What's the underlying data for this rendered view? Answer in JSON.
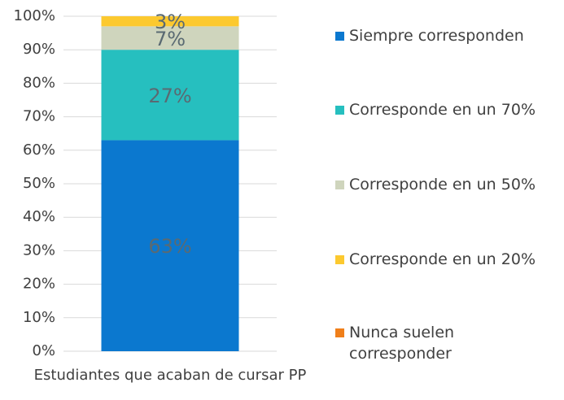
{
  "chart_data": {
    "type": "stacked_bar",
    "categories": [
      "Estudiantes que acaban de cursar PP"
    ],
    "series": [
      {
        "name": "Siempre corresponden",
        "color": "#0b78cf",
        "values": [
          63
        ],
        "value_labels": [
          "63%"
        ]
      },
      {
        "name": "Corresponde en un 70%",
        "color": "#26bfbf",
        "values": [
          27
        ],
        "value_labels": [
          "27%"
        ]
      },
      {
        "name": "Corresponde en un 50%",
        "color": "#cfd5bd",
        "values": [
          7
        ],
        "value_labels": [
          "7%"
        ]
      },
      {
        "name": "Corresponde en un 20%",
        "color": "#fcc92f",
        "values": [
          3
        ],
        "value_labels": [
          "3%"
        ]
      },
      {
        "name": "Nunca suelen corresponder",
        "color": "#f07f1a",
        "values": [
          0
        ]
      }
    ],
    "ylim": [
      0,
      100
    ],
    "yticks": [
      {
        "value": 0,
        "label": "0%"
      },
      {
        "value": 10,
        "label": "10%"
      },
      {
        "value": 20,
        "label": "20%"
      },
      {
        "value": 30,
        "label": "30%"
      },
      {
        "value": 40,
        "label": "40%"
      },
      {
        "value": 50,
        "label": "50%"
      },
      {
        "value": 60,
        "label": "60%"
      },
      {
        "value": 70,
        "label": "70%"
      },
      {
        "value": 80,
        "label": "80%"
      },
      {
        "value": 90,
        "label": "90%"
      },
      {
        "value": 100,
        "label": "100%"
      }
    ],
    "grid": true,
    "legend": "right"
  }
}
